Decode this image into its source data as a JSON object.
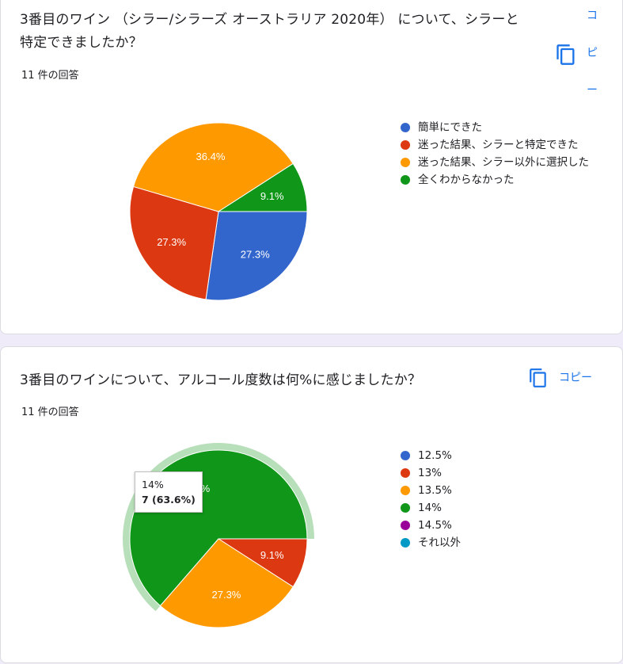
{
  "q1": {
    "title": "3番目のワイン （シラー/シラーズ オーストラリア 2020年） について、シラーと特定できましたか？",
    "count": "11 件の回答",
    "copy_label_chars": [
      "コ",
      "ピ",
      "ー"
    ],
    "legend": [
      {
        "label": "簡単にできた",
        "color": "#3366cc"
      },
      {
        "label": "迷った結果、シラーと特定できた",
        "color": "#dc3912"
      },
      {
        "label": "迷った結果、シラー以外に選択した",
        "color": "#ff9900"
      },
      {
        "label": "全くわからなかった",
        "color": "#109618"
      }
    ]
  },
  "q2": {
    "title": "3番目のワインについて、アルコール度数は何%に感じましたか？",
    "count": "11 件の回答",
    "copy_label": "コピー",
    "legend": [
      {
        "label": "12.5%",
        "color": "#3366cc"
      },
      {
        "label": "13%",
        "color": "#dc3912"
      },
      {
        "label": "13.5%",
        "color": "#ff9900"
      },
      {
        "label": "14%",
        "color": "#109618"
      },
      {
        "label": "14.5%",
        "color": "#990099"
      },
      {
        "label": "それ以外",
        "color": "#0099c6"
      }
    ],
    "tooltip": {
      "label": "14%",
      "value": "7 (63.6%)"
    }
  },
  "chart_data": [
    {
      "type": "pie",
      "categories": [
        "簡単にできた",
        "迷った結果、シラーと特定できた",
        "迷った結果、シラー以外に選択した",
        "全くわからなかった"
      ],
      "values": [
        27.3,
        27.3,
        36.4,
        9.1
      ],
      "labels": [
        "27.3%",
        "27.3%",
        "36.4%",
        "9.1%"
      ],
      "colors": [
        "#3366cc",
        "#dc3912",
        "#ff9900",
        "#109618"
      ]
    },
    {
      "type": "pie",
      "categories": [
        "12.5%",
        "13%",
        "13.5%",
        "14%",
        "14.5%",
        "それ以外"
      ],
      "values": [
        0,
        9.1,
        27.3,
        63.6,
        0,
        0
      ],
      "labels": [
        "",
        "9.1%",
        "27.3%",
        "63.6%",
        "",
        ""
      ],
      "colors": [
        "#3366cc",
        "#dc3912",
        "#ff9900",
        "#109618",
        "#990099",
        "#0099c6"
      ],
      "highlighted": "14%"
    }
  ]
}
